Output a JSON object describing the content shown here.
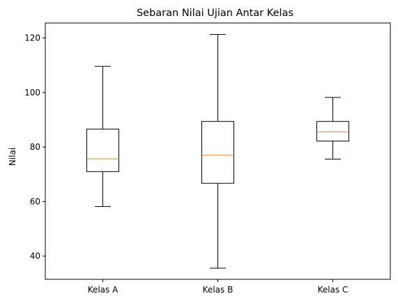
{
  "chart_data": {
    "type": "box",
    "title": "Sebaran Nilai Ujian Antar Kelas",
    "xlabel": "",
    "ylabel": "Nilai",
    "ylim": [
      31.5,
      125.5
    ],
    "yticks": [
      40,
      60,
      80,
      100,
      120
    ],
    "ytick_labels": [
      "40",
      "60",
      "80",
      "100",
      "120"
    ],
    "categories": [
      "Kelas A",
      "Kelas B",
      "Kelas C"
    ],
    "boxes": [
      {
        "category": "Kelas A",
        "whisker_low": 58.2,
        "q1": 71.0,
        "median": 75.7,
        "q3": 86.6,
        "whisker_high": 109.6
      },
      {
        "category": "Kelas B",
        "whisker_low": 35.6,
        "q1": 66.7,
        "median": 77.0,
        "q3": 89.4,
        "whisker_high": 121.3
      },
      {
        "category": "Kelas C",
        "whisker_low": 75.6,
        "q1": 82.2,
        "median": 85.6,
        "q3": 89.4,
        "whisker_high": 98.2
      }
    ],
    "grid": false,
    "colors": {
      "box": "#000000",
      "median": "#ff7f0e",
      "background": "#ffffff"
    }
  }
}
